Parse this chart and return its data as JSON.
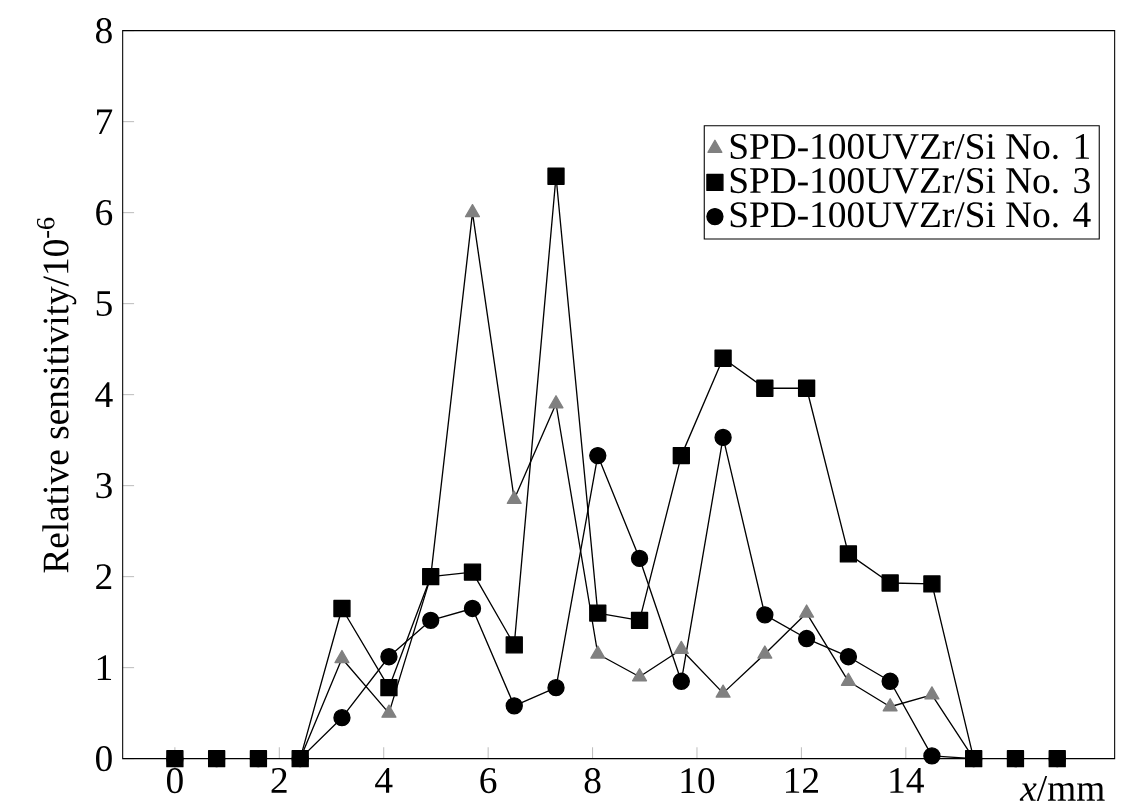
{
  "chart_data": {
    "type": "line",
    "xlabel": "*x*/mm",
    "ylabel": "Relative sensitivity/10$^{-6}$",
    "x": [
      0,
      0.8,
      1.6,
      2.4,
      3.2,
      4.1,
      4.9,
      5.7,
      6.5,
      7.3,
      8.1,
      8.9,
      9.7,
      10.5,
      11.3,
      12.1,
      12.9,
      13.7,
      14.5,
      15.3,
      16.1,
      16.9
    ],
    "series": [
      {
        "name": "SPD-100UVZr/Si No. 1",
        "color": "#808080",
        "marker": "triangle",
        "values": [
          0,
          0,
          0,
          0,
          1.1,
          0.5,
          2.0,
          6.0,
          2.85,
          3.9,
          1.15,
          0.9,
          1.2,
          0.72,
          1.15,
          1.6,
          0.85,
          0.57,
          0.7,
          0,
          0,
          0
        ]
      },
      {
        "name": "SPD-100UVZr/Si No. 3",
        "color": "#000000",
        "marker": "square",
        "values": [
          0,
          0,
          0,
          0,
          1.65,
          0.78,
          2.0,
          2.05,
          1.25,
          6.4,
          1.6,
          1.52,
          3.33,
          4.4,
          4.07,
          4.07,
          2.25,
          1.93,
          1.92,
          0,
          0,
          0
        ]
      },
      {
        "name": "SPD-100UVZr/Si No. 4",
        "color": "#000000",
        "marker": "circle",
        "values": [
          0,
          0,
          0,
          0,
          0.45,
          1.12,
          1.52,
          1.65,
          0.58,
          0.78,
          3.33,
          2.2,
          0.85,
          3.53,
          1.58,
          1.32,
          1.12,
          0.85,
          0.03,
          0,
          0,
          0
        ]
      }
    ],
    "xlim": [
      -1,
      18
    ],
    "ylim": [
      0,
      8
    ],
    "xticks": [
      0,
      2,
      4,
      6,
      8,
      10,
      12,
      14
    ],
    "yticks": [
      0,
      1,
      2,
      3,
      4,
      5,
      6,
      7,
      8
    ],
    "legend": "top right",
    "grid": false
  }
}
